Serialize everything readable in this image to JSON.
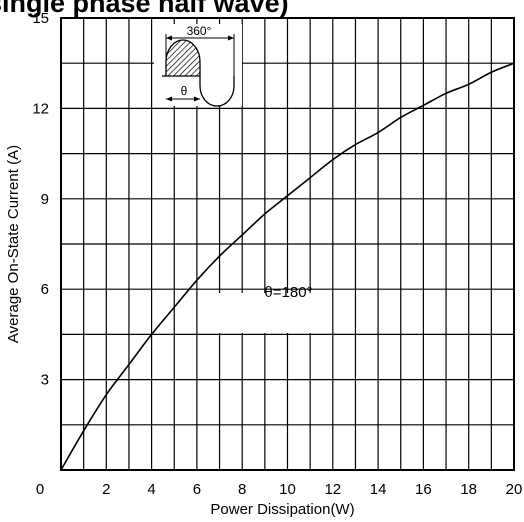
{
  "header_fragment": "(single phase half wave)",
  "chart_data": {
    "type": "line",
    "title": "",
    "xlabel": "Power Dissipation(W)",
    "ylabel": "Average On-State Current (A)",
    "xlim": [
      0,
      20
    ],
    "ylim": [
      0,
      15
    ],
    "x_ticks": [
      0,
      2,
      4,
      6,
      8,
      10,
      12,
      14,
      16,
      18,
      20
    ],
    "x_tick_labels": [
      "0",
      "2",
      "4",
      "6",
      "8",
      "10",
      "12",
      "14",
      "16",
      "18",
      "20"
    ],
    "y_ticks": [
      3,
      6,
      9,
      12,
      15
    ],
    "y_tick_labels": [
      "3",
      "6",
      "9",
      "12",
      "15"
    ],
    "grid": true,
    "series": [
      {
        "name": "",
        "x": [
          0,
          1,
          2,
          3,
          4,
          5,
          6,
          7,
          8,
          9,
          10,
          11,
          12,
          13,
          14,
          15,
          16,
          17,
          18,
          19,
          20
        ],
        "y": [
          0,
          1.3,
          2.5,
          3.5,
          4.5,
          5.4,
          6.3,
          7.1,
          7.8,
          8.5,
          9.1,
          9.7,
          10.3,
          10.8,
          11.2,
          11.7,
          12.1,
          12.5,
          12.8,
          13.2,
          13.5
        ]
      }
    ],
    "annotations": [
      {
        "text": "θ=180°",
        "x": 10,
        "y": 5.9
      }
    ],
    "inset": {
      "period_label": "360°",
      "angle_label": "θ"
    }
  }
}
